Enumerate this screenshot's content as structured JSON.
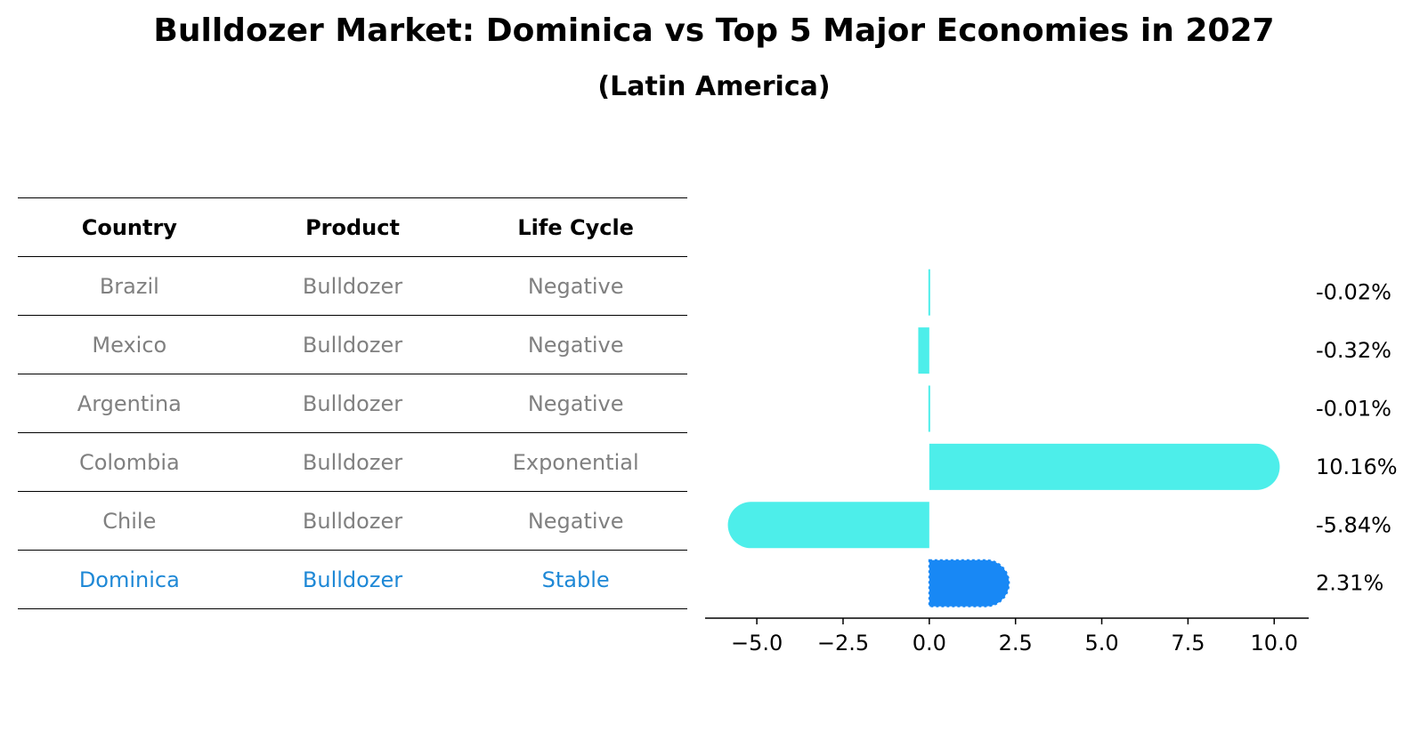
{
  "title": "Bulldozer Market: Dominica vs Top 5 Major Economies in 2027",
  "subtitle": "(Latin America)",
  "table": {
    "headers": [
      "Country",
      "Product",
      "Life Cycle"
    ],
    "rows": [
      {
        "country": "Brazil",
        "product": "Bulldozer",
        "life_cycle": "Negative"
      },
      {
        "country": "Mexico",
        "product": "Bulldozer",
        "life_cycle": "Negative"
      },
      {
        "country": "Argentina",
        "product": "Bulldozer",
        "life_cycle": "Negative"
      },
      {
        "country": "Colombia",
        "product": "Bulldozer",
        "life_cycle": "Exponential"
      },
      {
        "country": "Chile",
        "product": "Bulldozer",
        "life_cycle": "Negative"
      },
      {
        "country": "Dominica",
        "product": "Bulldozer",
        "life_cycle": "Stable"
      }
    ]
  },
  "chart_data": {
    "type": "bar",
    "orientation": "horizontal",
    "categories": [
      "Brazil",
      "Mexico",
      "Argentina",
      "Colombia",
      "Chile",
      "Dominica"
    ],
    "values": [
      -0.02,
      -0.32,
      -0.01,
      10.16,
      -5.84,
      2.31
    ],
    "data_labels": [
      "-0.02%",
      "-0.32%",
      "-0.01%",
      "10.16%",
      "-5.84%",
      "2.31%"
    ],
    "xlim": [
      -6.5,
      11
    ],
    "xticks": [
      -5.0,
      -2.5,
      0.0,
      2.5,
      5.0,
      7.5,
      10.0
    ],
    "xtick_labels": [
      "−5.0",
      "−2.5",
      "0.0",
      "2.5",
      "5.0",
      "7.5",
      "10.0"
    ],
    "grid": false,
    "colors": {
      "default": "#4deeea",
      "highlight": "#1888f5"
    },
    "highlight_category": "Dominica"
  },
  "colors": {
    "table_text": "#808080",
    "table_highlight": "#1e88d6"
  }
}
